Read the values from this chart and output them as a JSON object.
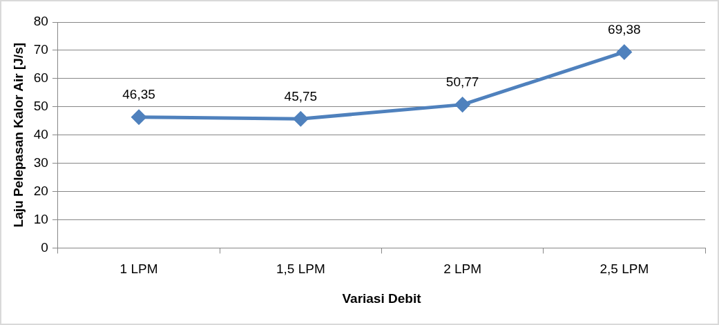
{
  "chart_data": {
    "type": "line",
    "xlabel": "Variasi Debit",
    "ylabel": "Laju Pelepasan Kalor Air [J/s]",
    "categories": [
      "1 LPM",
      "1,5 LPM",
      "2 LPM",
      "2,5 LPM"
    ],
    "series": [
      {
        "color": "#4f81bd",
        "values": [
          46.35,
          45.75,
          50.77,
          69.38
        ],
        "value_labels": [
          "46,35",
          "45,75",
          "50,77",
          "69,38"
        ]
      }
    ],
    "ylim": [
      0,
      80
    ],
    "yticks": [
      0,
      10,
      20,
      30,
      40,
      50,
      60,
      70,
      80
    ],
    "grid": "y",
    "marker": "diamond",
    "line_style": "solid",
    "legend": false
  }
}
